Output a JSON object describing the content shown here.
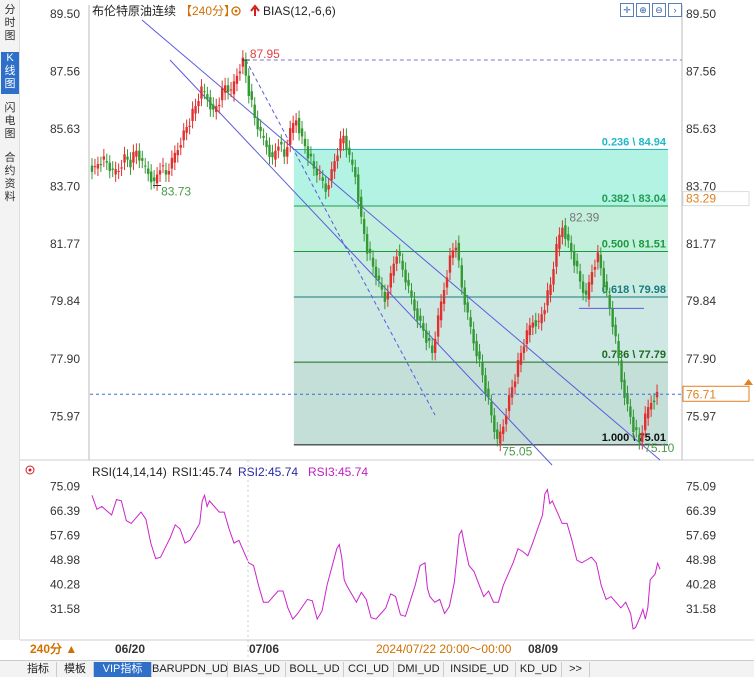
{
  "left_tabs": [
    "分时图",
    "K线图",
    "闪电图",
    "合约资料"
  ],
  "active_left_tab": 1,
  "header": {
    "title": "布伦特原油连续",
    "period": "【240分】",
    "indicator": "BIAS(12,-6,6)"
  },
  "toolbar_icons": [
    "crosshair-icon",
    "zoom-in-icon",
    "zoom-out-icon",
    "next-icon"
  ],
  "price_axis": {
    "ticks": [
      "89.50",
      "87.56",
      "85.63",
      "83.70",
      "81.77",
      "79.84",
      "77.90",
      "75.97"
    ],
    "current_price_label": "76.71",
    "highlight_label": "83.29"
  },
  "annotations": {
    "high_label": "87.95",
    "start_low_label": "83.73",
    "mid_high_label": "82.39",
    "low_label": "75.05",
    "last_low_label": "75.10"
  },
  "fib_levels": [
    {
      "label": "0.236 \\ 84.94",
      "value": 84.94,
      "color": "#1fb8c8",
      "fill": "#aaf2e0"
    },
    {
      "label": "0.382 \\ 83.04",
      "value": 83.04,
      "color": "#1f9c55",
      "fill": "#bdeed8"
    },
    {
      "label": "0.500 \\ 81.51",
      "value": 81.51,
      "color": "#1a9a40",
      "fill": "#c4e9dd"
    },
    {
      "label": "0.618 \\ 79.98",
      "value": 79.98,
      "color": "#1a7a80",
      "fill": "#c8e6e0"
    },
    {
      "label": "0.786 \\ 77.79",
      "value": 77.79,
      "color": "#1e6a20",
      "fill": "#bddcd4"
    },
    {
      "label": "1.000 \\ 75.01",
      "value": 75.01,
      "color": "#111111",
      "fill": "#bddcd4"
    }
  ],
  "rsi": {
    "header_name": "RSI(14,14,14)",
    "rsi1_label": "RSI1:45.74",
    "rsi2_label": "RSI2:45.74",
    "rsi3_label": "RSI3:45.74",
    "ticks": [
      "75.09",
      "66.39",
      "57.69",
      "48.98",
      "40.28",
      "31.58"
    ]
  },
  "time_axis": {
    "labels": [
      "06/20",
      "07/06",
      "08/09"
    ],
    "crosshair_label": "2024/07/22 20:00～00:00"
  },
  "period_button": "240分 ▲",
  "bottom_tabs": [
    "指标",
    "模板",
    "VIP指标",
    "BARUPDN_UD",
    "BIAS_UD",
    "BOLL_UD",
    "CCI_UD",
    "DMI_UD",
    "INSIDE_UD",
    "KD_UD",
    ">>"
  ],
  "active_bottom_tab": 2,
  "chart_data": {
    "type": "candlestick",
    "symbol": "布伦特原油连续",
    "ylim": [
      74.5,
      89.8
    ],
    "price_path": [
      [
        0,
        84.4
      ],
      [
        6,
        84.3
      ],
      [
        12,
        84.6
      ],
      [
        18,
        84.5
      ],
      [
        24,
        84.1
      ],
      [
        30,
        84.3
      ],
      [
        36,
        84.7
      ],
      [
        42,
        84.5
      ],
      [
        48,
        84.9
      ],
      [
        54,
        84.4
      ],
      [
        60,
        84.2
      ],
      [
        66,
        83.8
      ],
      [
        72,
        84.4
      ],
      [
        78,
        84.1
      ],
      [
        84,
        84.5
      ],
      [
        90,
        85.0
      ],
      [
        96,
        85.5
      ],
      [
        102,
        85.9
      ],
      [
        108,
        86.4
      ],
      [
        114,
        86.9
      ],
      [
        120,
        86.7
      ],
      [
        126,
        86.2
      ],
      [
        132,
        86.6
      ],
      [
        138,
        87.1
      ],
      [
        144,
        86.8
      ],
      [
        150,
        87.5
      ],
      [
        156,
        87.95
      ],
      [
        162,
        86.9
      ],
      [
        168,
        86.0
      ],
      [
        174,
        85.4
      ],
      [
        180,
        85.1
      ],
      [
        186,
        84.6
      ],
      [
        192,
        85.2
      ],
      [
        198,
        84.7
      ],
      [
        204,
        85.5
      ],
      [
        210,
        86.0
      ],
      [
        216,
        85.3
      ],
      [
        222,
        84.8
      ],
      [
        228,
        84.3
      ],
      [
        234,
        84.0
      ],
      [
        240,
        83.6
      ],
      [
        246,
        84.2
      ],
      [
        252,
        84.9
      ],
      [
        258,
        85.4
      ],
      [
        264,
        84.6
      ],
      [
        270,
        84.1
      ],
      [
        276,
        82.6
      ],
      [
        282,
        81.6
      ],
      [
        288,
        81.0
      ],
      [
        294,
        80.4
      ],
      [
        300,
        79.9
      ],
      [
        306,
        80.7
      ],
      [
        312,
        81.5
      ],
      [
        318,
        80.9
      ],
      [
        324,
        80.2
      ],
      [
        330,
        79.6
      ],
      [
        336,
        79.1
      ],
      [
        342,
        78.6
      ],
      [
        348,
        78.1
      ],
      [
        354,
        79.2
      ],
      [
        360,
        80.3
      ],
      [
        366,
        81.3
      ],
      [
        372,
        81.8
      ],
      [
        378,
        80.3
      ],
      [
        384,
        79.3
      ],
      [
        390,
        78.5
      ],
      [
        396,
        77.8
      ],
      [
        402,
        76.9
      ],
      [
        408,
        76.0
      ],
      [
        414,
        75.05
      ],
      [
        420,
        75.7
      ],
      [
        426,
        76.6
      ],
      [
        432,
        77.3
      ],
      [
        438,
        78.1
      ],
      [
        444,
        78.7
      ],
      [
        450,
        79.2
      ],
      [
        456,
        79.1
      ],
      [
        462,
        79.7
      ],
      [
        468,
        80.4
      ],
      [
        474,
        81.6
      ],
      [
        480,
        82.39
      ],
      [
        486,
        81.8
      ],
      [
        492,
        81.2
      ],
      [
        498,
        80.5
      ],
      [
        504,
        79.9
      ],
      [
        510,
        80.9
      ],
      [
        516,
        81.4
      ],
      [
        522,
        80.5
      ],
      [
        528,
        79.6
      ],
      [
        534,
        78.5
      ],
      [
        540,
        77.2
      ],
      [
        546,
        76.3
      ],
      [
        552,
        75.6
      ],
      [
        558,
        75.1
      ],
      [
        564,
        75.9
      ],
      [
        570,
        76.5
      ],
      [
        576,
        76.71
      ]
    ],
    "rsi_path": [
      [
        0,
        72
      ],
      [
        10,
        68
      ],
      [
        20,
        65
      ],
      [
        30,
        70
      ],
      [
        40,
        62
      ],
      [
        50,
        66
      ],
      [
        60,
        55
      ],
      [
        70,
        50
      ],
      [
        80,
        57
      ],
      [
        90,
        60
      ],
      [
        100,
        56
      ],
      [
        110,
        62
      ],
      [
        115,
        72
      ],
      [
        120,
        70
      ],
      [
        130,
        66
      ],
      [
        140,
        60
      ],
      [
        150,
        56
      ],
      [
        160,
        48
      ],
      [
        170,
        40
      ],
      [
        180,
        34
      ],
      [
        190,
        38
      ],
      [
        200,
        32
      ],
      [
        210,
        30
      ],
      [
        220,
        35
      ],
      [
        230,
        28
      ],
      [
        240,
        40
      ],
      [
        250,
        53
      ],
      [
        255,
        50
      ],
      [
        260,
        40
      ],
      [
        270,
        34
      ],
      [
        280,
        35
      ],
      [
        290,
        28
      ],
      [
        300,
        32
      ],
      [
        310,
        36
      ],
      [
        320,
        29
      ],
      [
        330,
        40
      ],
      [
        340,
        48
      ],
      [
        345,
        36
      ],
      [
        350,
        34
      ],
      [
        360,
        30
      ],
      [
        370,
        41
      ],
      [
        375,
        58
      ],
      [
        380,
        55
      ],
      [
        390,
        45
      ],
      [
        400,
        36
      ],
      [
        410,
        34
      ],
      [
        420,
        40
      ],
      [
        430,
        48
      ],
      [
        440,
        52
      ],
      [
        450,
        55
      ],
      [
        460,
        65
      ],
      [
        465,
        74
      ],
      [
        470,
        70
      ],
      [
        480,
        62
      ],
      [
        490,
        56
      ],
      [
        500,
        48
      ],
      [
        510,
        50
      ],
      [
        520,
        40
      ],
      [
        530,
        36
      ],
      [
        540,
        32
      ],
      [
        550,
        30
      ],
      [
        555,
        25
      ],
      [
        560,
        29
      ],
      [
        565,
        28
      ],
      [
        570,
        42
      ],
      [
        575,
        44
      ],
      [
        580,
        45.74
      ]
    ]
  }
}
